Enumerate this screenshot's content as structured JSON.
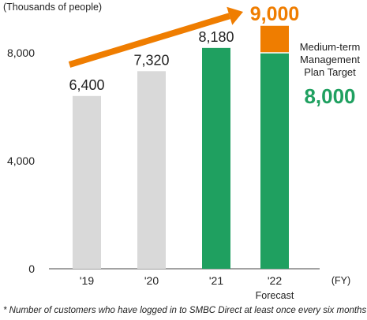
{
  "chart_data": {
    "type": "bar",
    "unit_label": "(Thousands of people)",
    "x_unit_label": "(FY)",
    "categories": [
      "'19",
      "'20",
      "'21",
      "'22"
    ],
    "category_sublabels": [
      "",
      "",
      "",
      "Forecast"
    ],
    "values": [
      6400,
      7320,
      8180,
      8000
    ],
    "value_labels": [
      "6,400",
      "7,320",
      "8,180",
      ""
    ],
    "bar_colors": [
      "#d9d9d9",
      "#d9d9d9",
      "#1fa060",
      "#1fa060"
    ],
    "stacked_extra": {
      "category": "'22",
      "value": 1000,
      "color": "#ef7d00"
    },
    "forecast_total": {
      "label": "9,000",
      "value": 9000,
      "color": "#ef7d00"
    },
    "target": {
      "text_lines": [
        "Medium-term",
        "Management",
        "Plan Target"
      ],
      "value_label": "8,000",
      "value": 8000,
      "color": "#1fa060"
    },
    "yticks": [
      0,
      4000,
      8000
    ],
    "ytick_labels": [
      "0",
      "4,000",
      "8,000"
    ],
    "ylim": [
      0,
      9000
    ],
    "grid": false,
    "trend_arrow": {
      "from_category": "'19",
      "to_category": "'22",
      "color": "#ef7d00"
    }
  },
  "footnote": "* Number of customers who have logged in to SMBC Direct at least once every six months"
}
